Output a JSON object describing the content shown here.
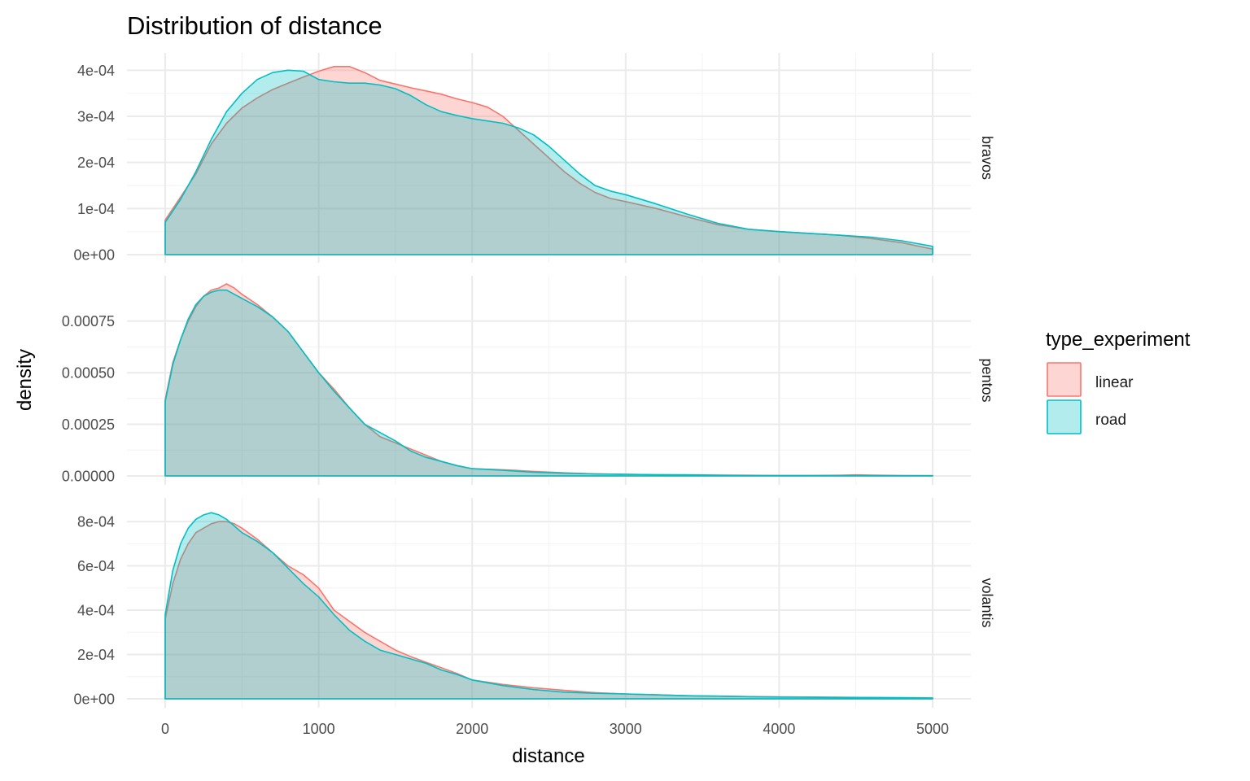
{
  "chart_data": {
    "type": "area",
    "title": "Distribution of distance",
    "xlabel": "distance",
    "ylabel": "density",
    "xlim": [
      0,
      5000
    ],
    "x_ticks": [
      0,
      1000,
      2000,
      3000,
      4000,
      5000
    ],
    "x_tick_labels": [
      "0",
      "1000",
      "2000",
      "3000",
      "4000",
      "5000"
    ],
    "legend": {
      "title": "type_experiment",
      "placement": "right",
      "entries": [
        {
          "name": "linear",
          "color": "#F8766D"
        },
        {
          "name": "road",
          "color": "#00BFC4"
        }
      ]
    },
    "colors": {
      "linear": "#F8766D",
      "road": "#00BFC4",
      "overlap": "#aecfcf"
    },
    "grid": true,
    "panels": [
      {
        "facet": "bravos",
        "ylim": [
          0,
          0.00042
        ],
        "y_ticks": [
          0,
          0.0001,
          0.0002,
          0.0003,
          0.0004
        ],
        "y_tick_labels": [
          "0e+00",
          "1e-04",
          "2e-04",
          "3e-04",
          "4e-04"
        ],
        "series": [
          {
            "name": "linear",
            "x": [
              0,
              100,
              200,
              300,
              400,
              500,
              600,
              700,
              800,
              900,
              1000,
              1100,
              1200,
              1300,
              1400,
              1500,
              1600,
              1700,
              1800,
              1900,
              2000,
              2100,
              2200,
              2300,
              2400,
              2500,
              2600,
              2700,
              2800,
              2900,
              3000,
              3200,
              3400,
              3600,
              3800,
              4000,
              4200,
              4400,
              4600,
              4800,
              5000
            ],
            "y": [
              7.5e-05,
              0.000125,
              0.000175,
              0.00024,
              0.000285,
              0.000318,
              0.00034,
              0.000358,
              0.000372,
              0.000385,
              0.000398,
              0.000408,
              0.000408,
              0.000395,
              0.000378,
              0.00037,
              0.000362,
              0.000355,
              0.000348,
              0.000338,
              0.00033,
              0.00032,
              0.0003,
              0.00027,
              0.00024,
              0.00021,
              0.00018,
              0.000155,
              0.000135,
              0.000122,
              0.000115,
              0.0001,
              8.2e-05,
              6.5e-05,
              5.5e-05,
              5e-05,
              4.6e-05,
              4.2e-05,
              3.5e-05,
              2.6e-05,
              1.2e-05
            ]
          },
          {
            "name": "road",
            "x": [
              0,
              100,
              200,
              300,
              400,
              500,
              600,
              700,
              800,
              900,
              1000,
              1100,
              1200,
              1300,
              1400,
              1500,
              1600,
              1700,
              1800,
              1900,
              2000,
              2100,
              2200,
              2300,
              2400,
              2500,
              2600,
              2700,
              2800,
              2900,
              3000,
              3200,
              3400,
              3600,
              3800,
              4000,
              4200,
              4400,
              4600,
              4800,
              5000
            ],
            "y": [
              7e-05,
              0.00012,
              0.00018,
              0.00025,
              0.00031,
              0.00035,
              0.00038,
              0.000395,
              0.0004,
              0.000398,
              0.00038,
              0.000375,
              0.000372,
              0.000372,
              0.000368,
              0.00036,
              0.000345,
              0.000325,
              0.00031,
              0.000302,
              0.000295,
              0.00029,
              0.000285,
              0.000275,
              0.00026,
              0.000235,
              0.000205,
              0.000175,
              0.00015,
              0.000138,
              0.00013,
              0.00011,
              8.8e-05,
              6.8e-05,
              5.5e-05,
              5e-05,
              4.6e-05,
              4.2e-05,
              3.8e-05,
              3e-05,
              1.8e-05
            ]
          }
        ]
      },
      {
        "facet": "pentos",
        "ylim": [
          0,
          0.00093
        ],
        "y_ticks": [
          0,
          0.00025,
          0.0005,
          0.00075
        ],
        "y_tick_labels": [
          "0.00000",
          "0.00025",
          "0.00050",
          "0.00075"
        ],
        "series": [
          {
            "name": "linear",
            "x": [
              0,
              50,
              100,
              150,
              200,
              250,
              300,
              350,
              400,
              450,
              500,
              600,
              700,
              800,
              900,
              1000,
              1100,
              1200,
              1300,
              1400,
              1500,
              1600,
              1700,
              1800,
              1900,
              2000,
              2200,
              2400,
              2600,
              2800,
              3000,
              3200,
              3400,
              3600,
              3800,
              4000,
              4200,
              4400,
              4500,
              4600,
              4800,
              5000
            ],
            "y": [
              0.00037,
              0.00055,
              0.00066,
              0.00075,
              0.00082,
              0.00087,
              0.0009,
              0.00091,
              0.00093,
              0.00091,
              0.00088,
              0.00083,
              0.00077,
              0.0007,
              0.0006,
              0.0005,
              0.00042,
              0.00033,
              0.00025,
              0.00019,
              0.00016,
              0.00013,
              0.0001,
              7e-05,
              5e-05,
              3.5e-05,
              3e-05,
              2.2e-05,
              1.5e-05,
              1e-05,
              8e-06,
              6e-06,
              5e-06,
              4e-06,
              3e-06,
              2e-06,
              2e-06,
              3e-06,
              5e-06,
              4e-06,
              2e-06,
              1e-06
            ]
          },
          {
            "name": "road",
            "x": [
              0,
              50,
              100,
              150,
              200,
              250,
              300,
              350,
              400,
              450,
              500,
              600,
              700,
              800,
              900,
              1000,
              1100,
              1200,
              1300,
              1400,
              1500,
              1600,
              1700,
              1800,
              1900,
              2000,
              2200,
              2400,
              2600,
              2800,
              3000,
              3200,
              3400,
              3600,
              3800,
              4000,
              4200,
              4400,
              4500,
              4600,
              4800,
              5000
            ],
            "y": [
              0.00036,
              0.00054,
              0.00066,
              0.00076,
              0.00083,
              0.00087,
              0.00089,
              0.0009,
              0.0009,
              0.00088,
              0.00086,
              0.00082,
              0.00077,
              0.0007,
              0.0006,
              0.0005,
              0.00041,
              0.00033,
              0.00025,
              0.00021,
              0.00017,
              0.00012,
              9e-05,
              7e-05,
              5e-05,
              3.5e-05,
              2.7e-05,
              1.8e-05,
              1.3e-05,
              1e-05,
              8e-06,
              6e-06,
              5e-06,
              3e-06,
              2e-06,
              2e-06,
              2e-06,
              2e-06,
              2e-06,
              2e-06,
              1e-06,
              1e-06
            ]
          }
        ]
      },
      {
        "facet": "volantis",
        "ylim": [
          0,
          0.00087
        ],
        "y_ticks": [
          0,
          0.0002,
          0.0004,
          0.0006,
          0.0008
        ],
        "y_tick_labels": [
          "0e+00",
          "2e-04",
          "4e-04",
          "6e-04",
          "8e-04"
        ],
        "series": [
          {
            "name": "linear",
            "x": [
              0,
              50,
              100,
              150,
              200,
              250,
              300,
              350,
              400,
              450,
              500,
              600,
              700,
              800,
              900,
              1000,
              1100,
              1200,
              1300,
              1400,
              1500,
              1600,
              1700,
              1800,
              1900,
              2000,
              2200,
              2400,
              2600,
              2800,
              3000,
              3200,
              3400,
              3600,
              3800,
              4000,
              4200,
              4400,
              4600,
              4800,
              5000
            ],
            "y": [
              0.00036,
              0.00052,
              0.00063,
              0.0007,
              0.00075,
              0.00077,
              0.00079,
              0.0008,
              0.0008,
              0.00079,
              0.00077,
              0.00072,
              0.00066,
              0.0006,
              0.00056,
              0.0005,
              0.0004,
              0.00035,
              0.0003,
              0.00026,
              0.00022,
              0.00019,
              0.000165,
              0.00014,
              0.000115,
              8.5e-05,
              6.5e-05,
              5e-05,
              3.8e-05,
              2.8e-05,
              2.2e-05,
              1.8e-05,
              1.4e-05,
              1.2e-05,
              1e-05,
              9e-06,
              8e-06,
              7e-06,
              6e-06,
              4e-06,
              3e-06
            ]
          },
          {
            "name": "road",
            "x": [
              0,
              50,
              100,
              150,
              200,
              250,
              300,
              350,
              400,
              450,
              500,
              600,
              700,
              800,
              900,
              1000,
              1100,
              1200,
              1300,
              1400,
              1500,
              1600,
              1700,
              1800,
              1900,
              2000,
              2200,
              2400,
              2600,
              2800,
              3000,
              3200,
              3400,
              3600,
              3800,
              4000,
              4200,
              4400,
              4600,
              4800,
              5000
            ],
            "y": [
              0.00038,
              0.00058,
              0.0007,
              0.00077,
              0.00081,
              0.00083,
              0.00084,
              0.00083,
              0.00081,
              0.00078,
              0.00075,
              0.00071,
              0.00066,
              0.00059,
              0.00052,
              0.00046,
              0.00038,
              0.00031,
              0.00026,
              0.00022,
              0.0002,
              0.00018,
              0.00016,
              0.00013,
              0.00011,
              8.5e-05,
              6e-05,
              4.2e-05,
              3e-05,
              2.5e-05,
              2.2e-05,
              1.8e-05,
              1.4e-05,
              1.2e-05,
              1e-05,
              8e-06,
              7e-06,
              6e-06,
              6e-06,
              5e-06,
              4e-06
            ]
          }
        ]
      }
    ]
  }
}
